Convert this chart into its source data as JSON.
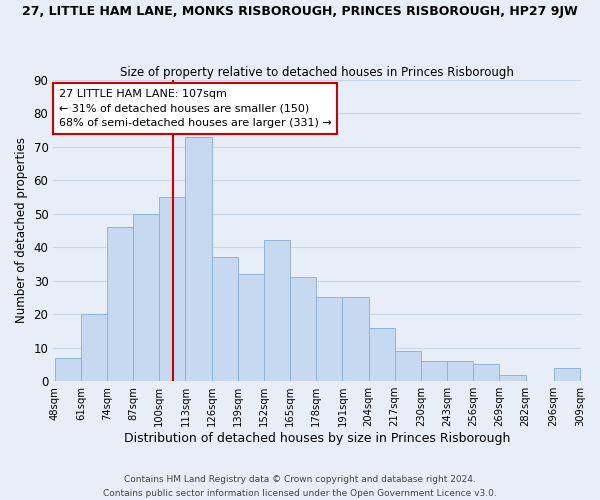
{
  "title": "27, LITTLE HAM LANE, MONKS RISBOROUGH, PRINCES RISBOROUGH, HP27 9JW",
  "subtitle": "Size of property relative to detached houses in Princes Risborough",
  "xlabel": "Distribution of detached houses by size in Princes Risborough",
  "ylabel": "Number of detached properties",
  "footer_line1": "Contains HM Land Registry data © Crown copyright and database right 2024.",
  "footer_line2": "Contains public sector information licensed under the Open Government Licence v3.0.",
  "bin_edges": [
    48,
    61,
    74,
    87,
    100,
    113,
    126,
    139,
    152,
    165,
    178,
    191,
    204,
    217,
    230,
    243,
    256,
    269,
    282,
    296,
    309
  ],
  "bin_labels": [
    "48sqm",
    "61sqm",
    "74sqm",
    "87sqm",
    "100sqm",
    "113sqm",
    "126sqm",
    "139sqm",
    "152sqm",
    "165sqm",
    "178sqm",
    "191sqm",
    "204sqm",
    "217sqm",
    "230sqm",
    "243sqm",
    "256sqm",
    "269sqm",
    "282sqm",
    "296sqm",
    "309sqm"
  ],
  "bar_values": [
    7,
    20,
    46,
    50,
    55,
    73,
    37,
    32,
    42,
    31,
    25,
    25,
    16,
    9,
    6,
    6,
    5,
    2,
    0,
    4
  ],
  "bar_color": "#c6d9f0",
  "bar_edge_color": "#8fb4d9",
  "grid_color": "#c8d8e8",
  "vline_x": 107,
  "vline_color": "#cc0000",
  "annotation_title": "27 LITTLE HAM LANE: 107sqm",
  "annotation_line1": "← 31% of detached houses are smaller (150)",
  "annotation_line2": "68% of semi-detached houses are larger (331) →",
  "annotation_box_color": "#ffffff",
  "annotation_box_edge": "#cc0000",
  "ylim": [
    0,
    90
  ],
  "yticks": [
    0,
    10,
    20,
    30,
    40,
    50,
    60,
    70,
    80,
    90
  ],
  "background_color": "#e8eef8"
}
